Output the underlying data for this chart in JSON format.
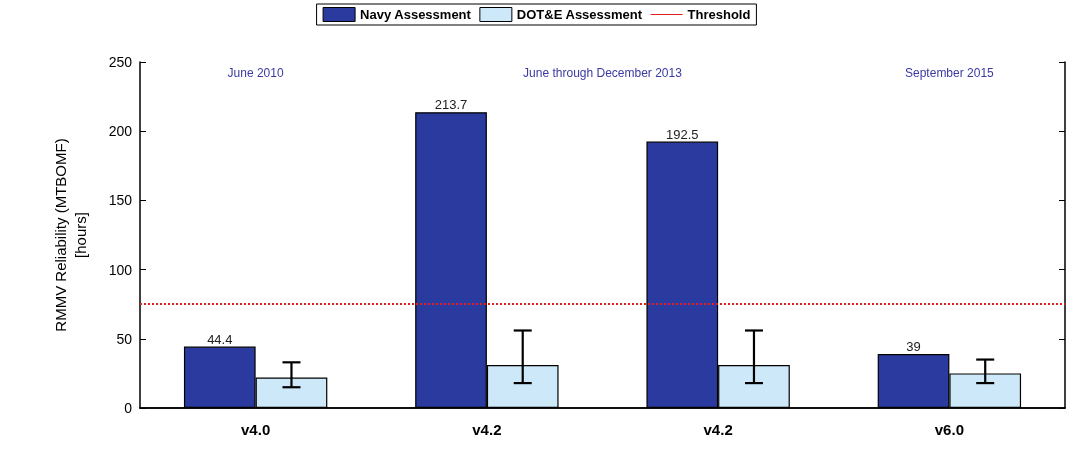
{
  "chart_data": {
    "type": "bar",
    "ylabel": "RMMV Reliability (MTBOMF)\n[hours]",
    "categories": [
      "v4.0",
      "v4.2",
      "v4.2",
      "v6.0"
    ],
    "series": [
      {
        "name": "Navy Assessment",
        "color": "#2b3a9e",
        "values": [
          44.4,
          213.7,
          192.5,
          39
        ],
        "value_labels": [
          "44.4",
          "213.7",
          "192.5",
          "39"
        ]
      },
      {
        "name": "DOT&E Assessment",
        "color": "#cde8f8",
        "values": [
          22,
          31,
          31,
          25
        ],
        "errors": [
          [
            15,
            33
          ],
          [
            18,
            56
          ],
          [
            18,
            56
          ],
          [
            18,
            35
          ]
        ]
      }
    ],
    "ref_lines": [
      {
        "axis": "y",
        "value": 75,
        "label": "Threshold",
        "color": "#e02020",
        "line_style": "dotted"
      }
    ],
    "annotations": [
      "June 2010",
      "June through December 2013",
      "September 2015"
    ],
    "ylim": [
      0,
      250
    ],
    "yticks": [
      0,
      50,
      100,
      150,
      200,
      250
    ],
    "grid": false,
    "legend": "top"
  }
}
